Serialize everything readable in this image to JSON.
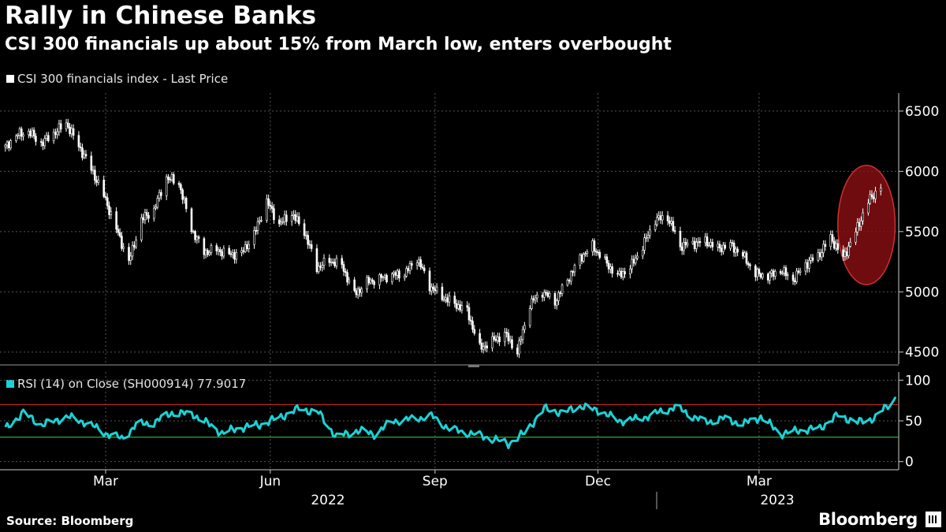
{
  "header": {
    "title": "Rally in Chinese Banks",
    "subtitle": "CSI 300 financials up about 15% from March low, enters overbought"
  },
  "legend": {
    "price_label": "CSI 300 financials index - Last Price"
  },
  "rsi_legend": {
    "label": "RSI (14)  on Close (SH000914) 77.9017"
  },
  "footer": {
    "source": "Source: Bloomberg",
    "brand": "Bloomberg"
  },
  "colors": {
    "background": "#000000",
    "price": "#ffffff",
    "rsi": "#19d3d6",
    "overbought_line": "#d22a2a",
    "oversold_line": "#3bbf3b",
    "highlight": "#8b0f14"
  },
  "chart_data": [
    {
      "type": "line",
      "chart_style": "candlestick",
      "title": "",
      "series": [
        {
          "name": "CSI 300 financials index - Last Price",
          "x": [
            "2022-01-04",
            "2022-01-10",
            "2022-01-17",
            "2022-01-24",
            "2022-02-07",
            "2022-02-14",
            "2022-02-21",
            "2022-02-28",
            "2022-03-07",
            "2022-03-14",
            "2022-03-21",
            "2022-03-28",
            "2022-04-04",
            "2022-04-11",
            "2022-04-18",
            "2022-04-25",
            "2022-05-02",
            "2022-05-09",
            "2022-05-16",
            "2022-05-23",
            "2022-05-30",
            "2022-06-06",
            "2022-06-13",
            "2022-06-20",
            "2022-06-27",
            "2022-07-04",
            "2022-07-11",
            "2022-07-18",
            "2022-07-25",
            "2022-08-01",
            "2022-08-08",
            "2022-08-15",
            "2022-08-22",
            "2022-08-29",
            "2022-09-05",
            "2022-09-12",
            "2022-09-19",
            "2022-09-26",
            "2022-10-10",
            "2022-10-17",
            "2022-10-24",
            "2022-10-31",
            "2022-11-07",
            "2022-11-14",
            "2022-11-21",
            "2022-11-28",
            "2022-12-05",
            "2022-12-12",
            "2022-12-19",
            "2022-12-26",
            "2023-01-02",
            "2023-01-09",
            "2023-01-16",
            "2023-01-30",
            "2023-02-06",
            "2023-02-13",
            "2023-02-20",
            "2023-02-27",
            "2023-03-06",
            "2023-03-13",
            "2023-03-20",
            "2023-03-27",
            "2023-04-03",
            "2023-04-10",
            "2023-04-17",
            "2023-04-24",
            "2023-05-01",
            "2023-05-08"
          ],
          "values": [
            6200,
            6300,
            6330,
            6230,
            6400,
            6210,
            6020,
            5800,
            5520,
            5250,
            5600,
            5680,
            5950,
            5900,
            5520,
            5330,
            5350,
            5310,
            5320,
            5480,
            5750,
            5560,
            5650,
            5500,
            5200,
            5260,
            5220,
            4980,
            5080,
            5110,
            5140,
            5150,
            5280,
            5050,
            4960,
            4900,
            4840,
            4530,
            4650,
            4500,
            4900,
            5000,
            4920,
            5100,
            5280,
            5380,
            5250,
            5130,
            5200,
            5380,
            5600,
            5620,
            5380,
            5420,
            5360,
            5390,
            5300,
            5150,
            5130,
            5180,
            5100,
            5230,
            5300,
            5450,
            5280,
            5500,
            5750,
            5880
          ]
        }
      ],
      "xlabel": "",
      "ylabel": "",
      "ylim": [
        4400,
        6650
      ],
      "yticks": [
        4500,
        5000,
        5500,
        6000,
        6500
      ],
      "xtick_labels": [
        {
          "date": "2022-03-01",
          "label": "Mar"
        },
        {
          "date": "2022-06-01",
          "label": "Jun"
        },
        {
          "date": "2022-09-01",
          "label": "Sep"
        },
        {
          "date": "2022-12-01",
          "label": "Dec"
        },
        {
          "date": "2023-03-01",
          "label": "Mar"
        }
      ],
      "year_labels": [
        {
          "label": "2022"
        },
        {
          "label": "2023"
        }
      ],
      "xlim": [
        "2022-01-01",
        "2023-05-18"
      ],
      "grid": true,
      "annotation": {
        "type": "ellipse",
        "date_range": [
          "2023-04-14",
          "2023-05-16"
        ],
        "value_range": [
          5060,
          6050
        ]
      }
    },
    {
      "type": "line",
      "title": "",
      "series": [
        {
          "name": "RSI (14)  on Close (SH000914) 77.9017",
          "x": [
            "2022-01-04",
            "2022-01-14",
            "2022-01-24",
            "2022-02-08",
            "2022-02-18",
            "2022-03-01",
            "2022-03-10",
            "2022-03-18",
            "2022-03-28",
            "2022-04-07",
            "2022-04-19",
            "2022-05-05",
            "2022-05-16",
            "2022-05-26",
            "2022-06-07",
            "2022-06-17",
            "2022-06-28",
            "2022-07-08",
            "2022-07-19",
            "2022-07-29",
            "2022-08-09",
            "2022-08-19",
            "2022-08-30",
            "2022-09-09",
            "2022-09-20",
            "2022-09-30",
            "2022-10-12",
            "2022-10-21",
            "2022-11-01",
            "2022-11-11",
            "2022-11-22",
            "2022-12-02",
            "2022-12-13",
            "2022-12-23",
            "2023-01-04",
            "2023-01-13",
            "2023-01-30",
            "2023-02-09",
            "2023-02-20",
            "2023-03-02",
            "2023-03-13",
            "2023-03-23",
            "2023-04-04",
            "2023-04-14",
            "2023-04-25",
            "2023-05-05",
            "2023-05-16"
          ],
          "values": [
            40,
            60,
            45,
            55,
            48,
            35,
            28,
            45,
            48,
            60,
            58,
            35,
            42,
            45,
            55,
            65,
            60,
            30,
            38,
            34,
            50,
            52,
            56,
            40,
            35,
            30,
            22,
            35,
            65,
            60,
            68,
            62,
            50,
            52,
            60,
            67,
            48,
            53,
            46,
            55,
            34,
            38,
            41,
            57,
            48,
            54,
            77.9
          ]
        }
      ],
      "xlabel": "",
      "ylabel": "",
      "ylim": [
        -10,
        110
      ],
      "yticks": [
        0,
        50,
        100
      ],
      "reference_lines": [
        {
          "value": 70,
          "color": "#d22a2a"
        },
        {
          "value": 30,
          "color": "#3bbf3b"
        }
      ],
      "grid": true
    }
  ]
}
